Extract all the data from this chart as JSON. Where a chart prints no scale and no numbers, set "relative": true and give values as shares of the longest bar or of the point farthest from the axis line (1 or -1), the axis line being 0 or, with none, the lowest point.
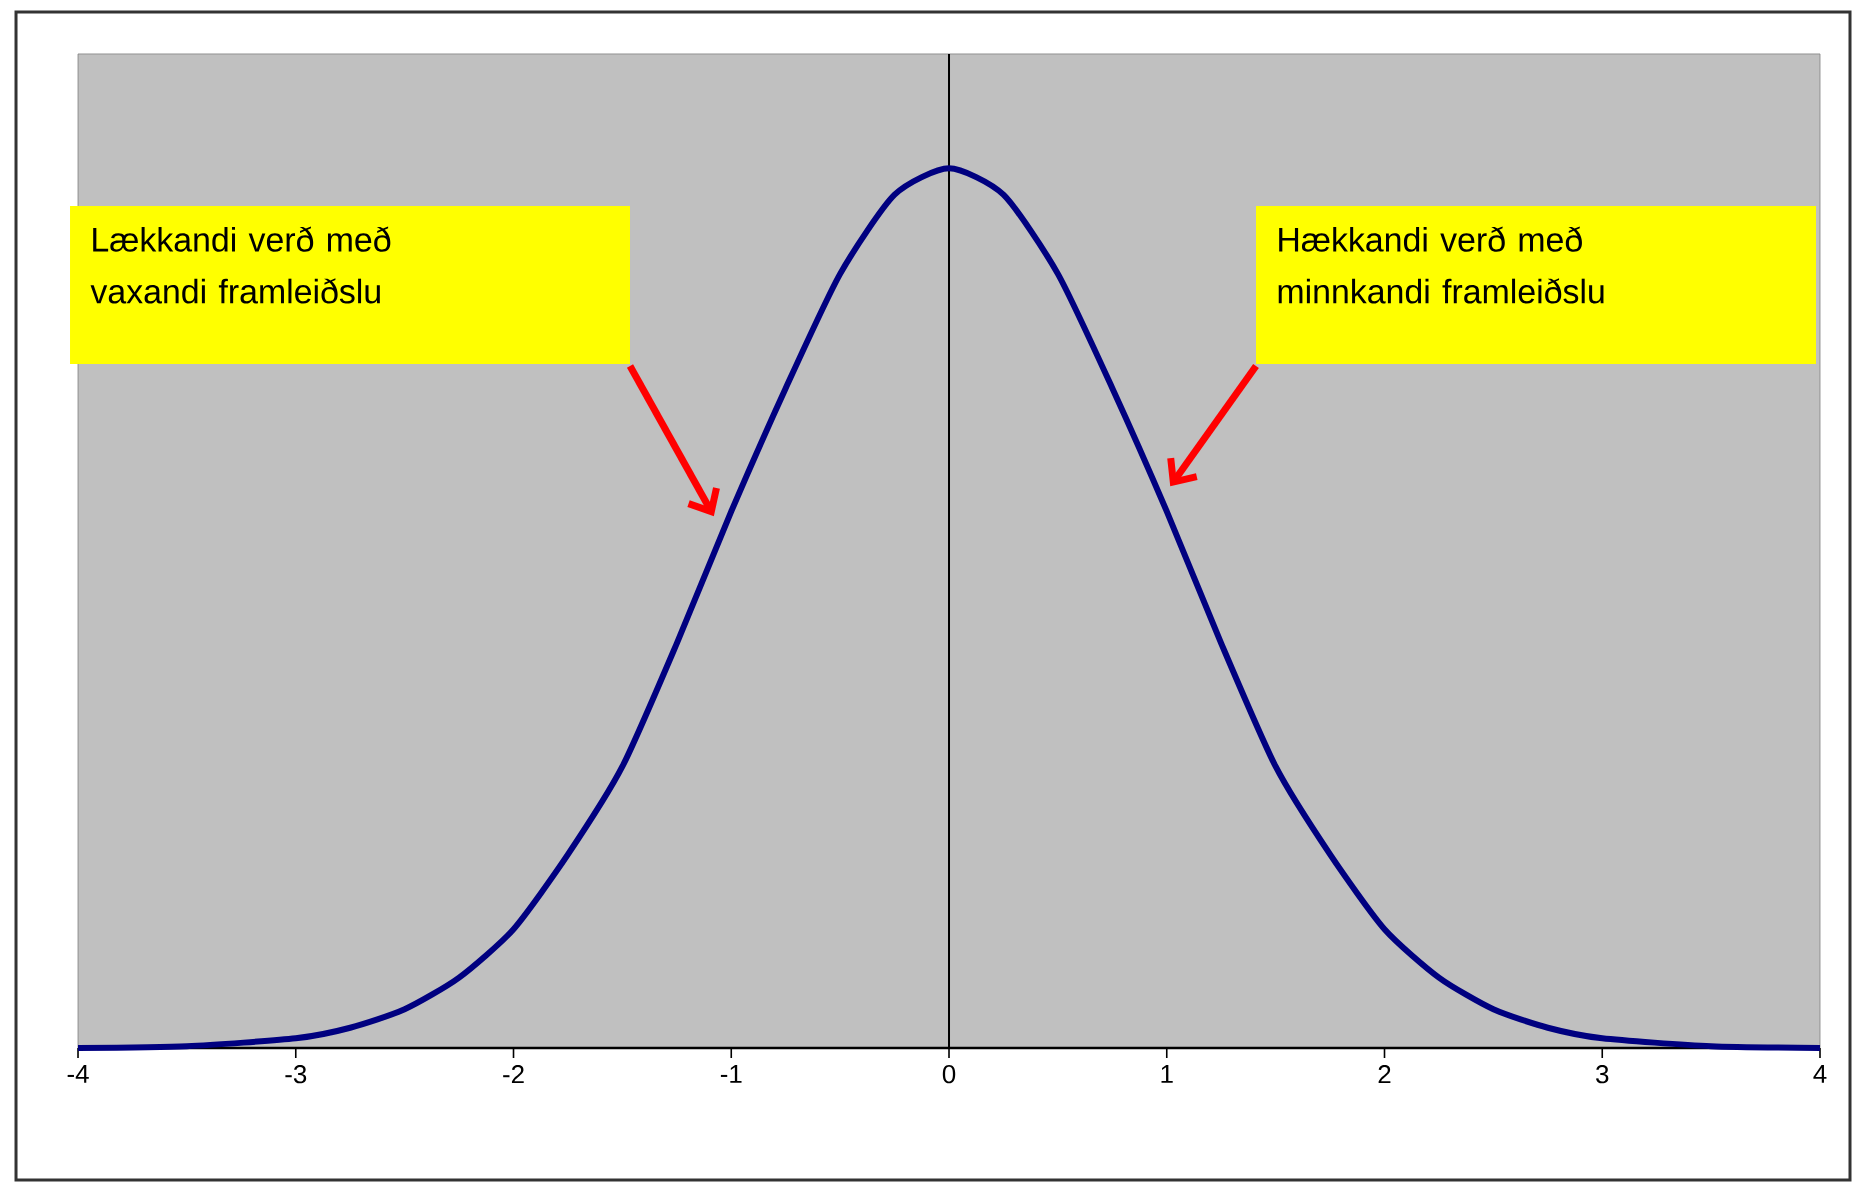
{
  "chart_data": {
    "type": "line",
    "relative": true,
    "x": [
      -4,
      -3.5,
      -3,
      -2.75,
      -2.5,
      -2.25,
      -2,
      -1.75,
      -1.5,
      -1.25,
      -1,
      -0.75,
      -0.5,
      -0.25,
      0,
      0.25,
      0.5,
      0.75,
      1,
      1.25,
      1.5,
      1.75,
      2,
      2.25,
      2.5,
      2.75,
      3,
      3.5,
      4
    ],
    "series": [
      {
        "color": "#000080",
        "values": [
          0,
          0.002,
          0.011,
          0.023,
          0.044,
          0.08,
          0.135,
          0.22,
          0.32,
          0.46,
          0.61,
          0.75,
          0.88,
          0.97,
          1,
          0.97,
          0.88,
          0.75,
          0.61,
          0.46,
          0.32,
          0.22,
          0.135,
          0.08,
          0.044,
          0.023,
          0.011,
          0.002,
          0
        ]
      }
    ],
    "xlim": [
      -4,
      4
    ],
    "xticks": [
      -4,
      -3,
      -2,
      -1,
      0,
      1,
      2,
      3,
      4
    ],
    "ref_lines": [
      {
        "axis": "x",
        "value": 0,
        "color": "#000000"
      }
    ],
    "grid": false,
    "marker": "none",
    "line_style": "solid",
    "annotations": [
      "Lækkandi verð með vaxandi framleiðslu",
      "Hækkandi verð með minnkandi framleiðslu"
    ]
  }
}
